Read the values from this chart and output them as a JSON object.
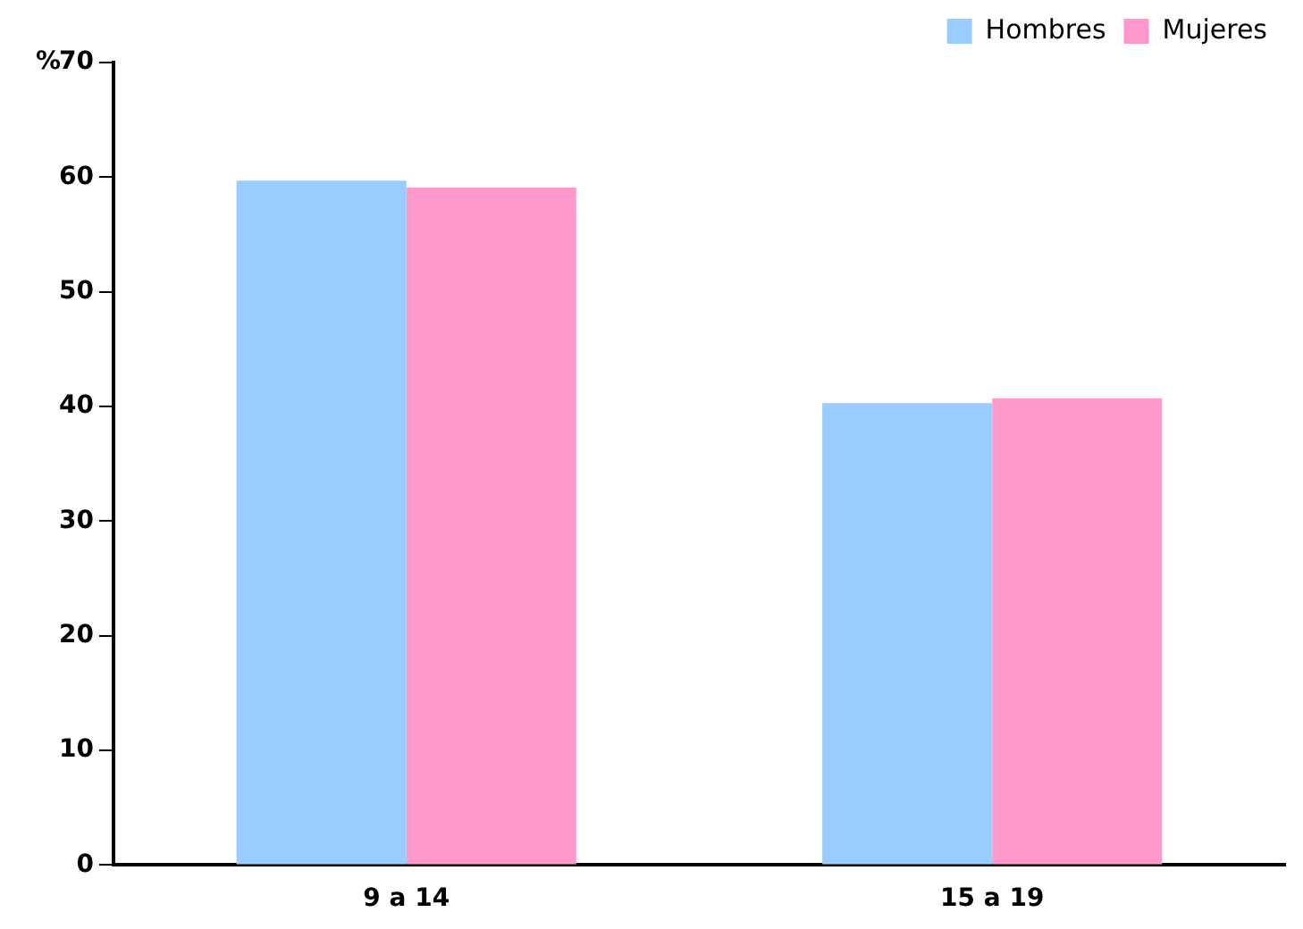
{
  "chart_data": {
    "type": "bar",
    "ylabel": "%",
    "categories": [
      "9 a 14",
      "15 a 19"
    ],
    "series": [
      {
        "name": "Hombres",
        "color": "#99ccff",
        "values": [
          59.7,
          40.3
        ]
      },
      {
        "name": "Mujeres",
        "color": "#ff99cc",
        "values": [
          59.1,
          40.7
        ]
      }
    ],
    "ylim": [
      0,
      70
    ],
    "yticks": [
      0,
      10,
      20,
      30,
      40,
      50,
      60,
      70
    ],
    "grid": false,
    "legend": "top right"
  }
}
